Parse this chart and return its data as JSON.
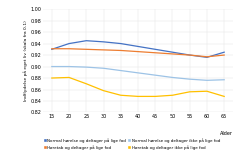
{
  "x": [
    15,
    20,
    25,
    30,
    35,
    40,
    45,
    50,
    55,
    60,
    65
  ],
  "line1": [
    0.93,
    0.94,
    0.945,
    0.943,
    0.94,
    0.935,
    0.93,
    0.925,
    0.92,
    0.916,
    0.925
  ],
  "line2": [
    0.931,
    0.931,
    0.93,
    0.929,
    0.928,
    0.926,
    0.924,
    0.922,
    0.92,
    0.917,
    0.92
  ],
  "line3": [
    0.9,
    0.9,
    0.899,
    0.897,
    0.893,
    0.889,
    0.885,
    0.881,
    0.878,
    0.876,
    0.877
  ],
  "line4": [
    0.88,
    0.881,
    0.87,
    0.858,
    0.85,
    0.848,
    0.848,
    0.85,
    0.856,
    0.857,
    0.848
  ],
  "color1": "#4472C4",
  "color2": "#ED7D31",
  "color3": "#9DC3E6",
  "color4": "#FFC000",
  "label1": "Normal hørelse og deltager på lige fod",
  "label2": "Høretab og deltager på lige fod",
  "label3": "Normal hørelse og deltager ikke på lige fod",
  "label4": "Høretab og deltager ikke på lige fod",
  "ylabel": "Indflydelse på eget liv (skala fra 0-1)",
  "xlabel": "Alder",
  "ylim": [
    0.82,
    1.0
  ],
  "yticks": [
    0.82,
    0.84,
    0.86,
    0.88,
    0.9,
    0.92,
    0.94,
    0.96,
    0.98,
    1.0
  ],
  "xticks": [
    15,
    20,
    25,
    30,
    35,
    40,
    45,
    50,
    55,
    60,
    65
  ],
  "background_color": "#FFFFFF",
  "grid_color": "#E0E0E0"
}
